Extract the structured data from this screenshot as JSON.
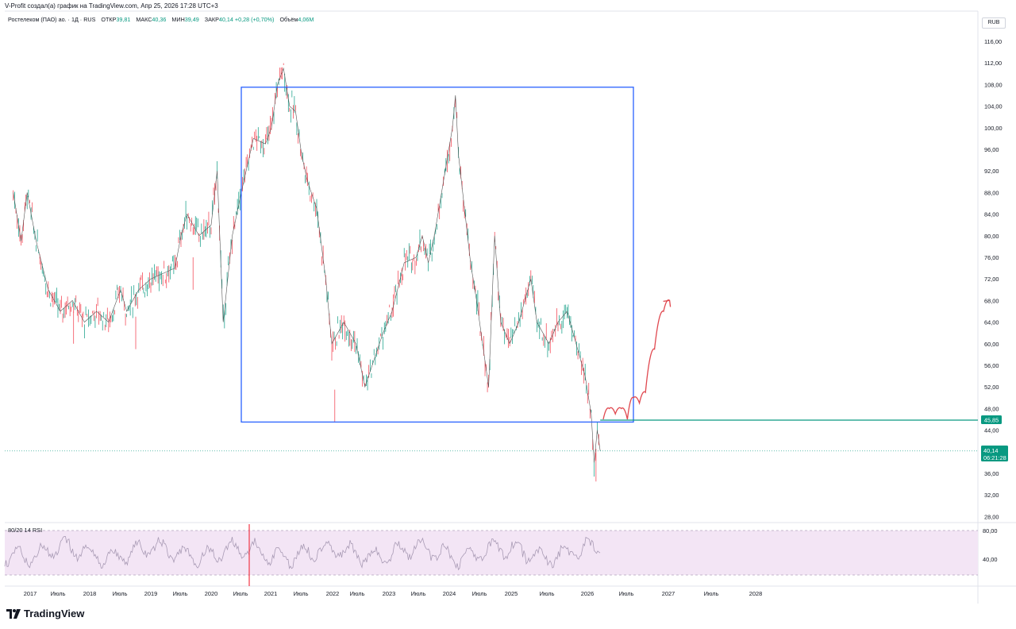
{
  "header": {
    "title": "V-Profit создал(а) график на TradingView.com, Апр 25, 2026 17:28 UTC+3"
  },
  "legend": {
    "symbol": "Ростелеком (ПАО) ао. · 1Д · RUS",
    "open_label": "ОТКР",
    "open_value": "39,81",
    "high_label": "МАКС",
    "high_value": "40,36",
    "low_label": "МИН",
    "low_value": "39,49",
    "close_label": "ЗАКР",
    "close_value": "40,14",
    "change": "+0,28 (+0,70%)",
    "volume_label": "Объём",
    "volume_value": "4,06M"
  },
  "currency": "RUB",
  "price_tag": {
    "value": "40,14",
    "countdown": "06:21:28"
  },
  "level_tag": {
    "value": "45,85"
  },
  "rsi": {
    "label": "80/20 14 RSI",
    "upper": 80,
    "lower": 20,
    "tick": "40,00",
    "upper_tick": "80,00"
  },
  "brand": "TradingView",
  "colors": {
    "up": "#089981",
    "down": "#f23645",
    "box": "#2962ff",
    "level": "#089981",
    "arrow": "#e0484f",
    "rsi_band": "#f3e5f5"
  },
  "chart_data": {
    "type": "line",
    "title": "",
    "y_axis": {
      "ticks": [
        "116,00",
        "112,00",
        "108,00",
        "104,00",
        "100,00",
        "96,00",
        "92,00",
        "88,00",
        "84,00",
        "80,00",
        "76,00",
        "72,00",
        "68,00",
        "64,00",
        "60,00",
        "56,00",
        "52,00",
        "48,00",
        "44,00",
        "40,00",
        "36,00",
        "32,00",
        "28,00"
      ],
      "range": [
        28,
        116
      ]
    },
    "x_axis": {
      "ticks": [
        "2017",
        "Июль",
        "2018",
        "Июль",
        "2019",
        "Июль",
        "2020",
        "Июль",
        "2021",
        "Июль",
        "2022",
        "Июль",
        "2023",
        "Июль",
        "2024",
        "Июль",
        "2025",
        "Июль",
        "2026",
        "Июль",
        "2027",
        "Июль",
        "2028"
      ]
    },
    "series": [
      {
        "points": [
          [
            2016.72,
            88
          ],
          [
            2016.85,
            79
          ],
          [
            2016.95,
            88
          ],
          [
            2017.1,
            79
          ],
          [
            2017.3,
            70
          ],
          [
            2017.5,
            66
          ],
          [
            2017.7,
            68
          ],
          [
            2017.9,
            64
          ],
          [
            2018.1,
            66
          ],
          [
            2018.3,
            64
          ],
          [
            2018.5,
            70
          ],
          [
            2018.6,
            66
          ],
          [
            2018.8,
            70
          ],
          [
            2019.0,
            72
          ],
          [
            2019.2,
            73
          ],
          [
            2019.4,
            74
          ],
          [
            2019.5,
            80
          ],
          [
            2019.6,
            84
          ],
          [
            2019.8,
            80
          ],
          [
            2020.0,
            82
          ],
          [
            2020.1,
            92
          ],
          [
            2020.2,
            64
          ],
          [
            2020.35,
            80
          ],
          [
            2020.5,
            88
          ],
          [
            2020.7,
            98
          ],
          [
            2020.9,
            97
          ],
          [
            2021.0,
            100
          ],
          [
            2021.1,
            108
          ],
          [
            2021.2,
            111
          ],
          [
            2021.3,
            104
          ],
          [
            2021.4,
            103
          ],
          [
            2021.5,
            95
          ],
          [
            2021.6,
            90
          ],
          [
            2021.75,
            85
          ],
          [
            2021.9,
            72
          ],
          [
            2022.0,
            60
          ],
          [
            2022.1,
            62
          ],
          [
            2022.2,
            64
          ],
          [
            2022.4,
            60
          ],
          [
            2022.55,
            52
          ],
          [
            2022.7,
            57
          ],
          [
            2022.85,
            62
          ],
          [
            2023.0,
            66
          ],
          [
            2023.2,
            75
          ],
          [
            2023.4,
            76
          ],
          [
            2023.5,
            80
          ],
          [
            2023.6,
            75
          ],
          [
            2023.7,
            80
          ],
          [
            2023.85,
            90
          ],
          [
            2024.0,
            100
          ],
          [
            2024.05,
            106
          ],
          [
            2024.1,
            95
          ],
          [
            2024.2,
            85
          ],
          [
            2024.3,
            75
          ],
          [
            2024.4,
            68
          ],
          [
            2024.5,
            60
          ],
          [
            2024.6,
            52
          ],
          [
            2024.7,
            80
          ],
          [
            2024.8,
            64
          ],
          [
            2024.95,
            60
          ],
          [
            2025.1,
            64
          ],
          [
            2025.3,
            72
          ],
          [
            2025.4,
            64
          ],
          [
            2025.6,
            60
          ],
          [
            2025.75,
            64
          ],
          [
            2025.9,
            66
          ],
          [
            2026.0,
            62
          ],
          [
            2026.1,
            58
          ],
          [
            2026.2,
            54
          ],
          [
            2026.3,
            47
          ],
          [
            2026.35,
            38
          ],
          [
            2026.4,
            44
          ],
          [
            2026.45,
            40.14
          ]
        ]
      }
    ],
    "annotations": [
      {
        "type": "rectangle",
        "from": [
          2020.5,
          107.5
        ],
        "to": [
          2027.0,
          45.5
        ]
      },
      {
        "type": "horizontal_level",
        "from": 2026.45,
        "value": 45.85
      },
      {
        "type": "projection_path",
        "points": [
          [
            2026.5,
            46
          ],
          [
            2026.6,
            48
          ],
          [
            2026.7,
            47
          ],
          [
            2026.8,
            48
          ],
          [
            2026.9,
            46
          ],
          [
            2027.0,
            50
          ],
          [
            2027.1,
            49
          ],
          [
            2027.2,
            51
          ],
          [
            2027.35,
            59
          ],
          [
            2027.5,
            66
          ],
          [
            2027.6,
            68
          ]
        ]
      }
    ]
  }
}
